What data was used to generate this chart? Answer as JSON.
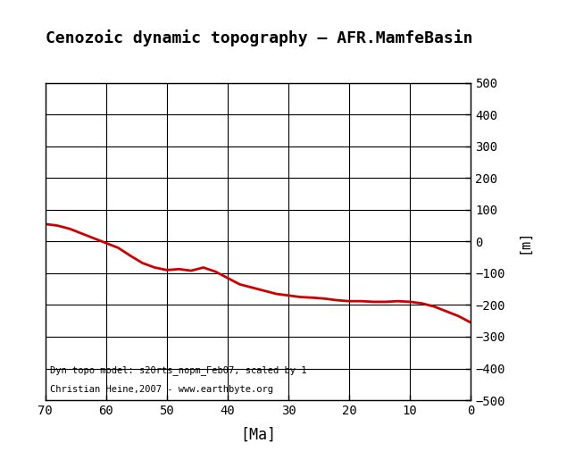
{
  "title": "Cenozoic dynamic topography – AFR.MamfeBasin",
  "xlabel": "[Ma]",
  "ylabel": "[m]",
  "annotation_line1": "Dyn topo model: s20rts_nopm_Feb07, scaled by 1",
  "annotation_line2": "Christian Heine,2007 - www.earthbyte.org",
  "xlim": [
    70,
    0
  ],
  "ylim": [
    -500,
    500
  ],
  "yticks": [
    -500,
    -400,
    -300,
    -200,
    -100,
    0,
    100,
    200,
    300,
    400,
    500
  ],
  "xticks": [
    70,
    60,
    50,
    40,
    30,
    20,
    10,
    0
  ],
  "line_color": "#cc0000",
  "line_width": 2.0,
  "bg_color": "#ffffff",
  "x": [
    70,
    68,
    66,
    64,
    62,
    60,
    58,
    56,
    54,
    52,
    50,
    48,
    46,
    44,
    42,
    40,
    38,
    36,
    34,
    32,
    30,
    28,
    26,
    24,
    22,
    20,
    18,
    16,
    14,
    12,
    10,
    8,
    6,
    4,
    2,
    0
  ],
  "y": [
    55,
    50,
    40,
    25,
    10,
    -5,
    -20,
    -45,
    -68,
    -82,
    -90,
    -87,
    -92,
    -82,
    -95,
    -115,
    -135,
    -145,
    -155,
    -165,
    -170,
    -175,
    -177,
    -180,
    -185,
    -188,
    -188,
    -190,
    -190,
    -188,
    -190,
    -195,
    -205,
    -220,
    -235,
    -255
  ]
}
